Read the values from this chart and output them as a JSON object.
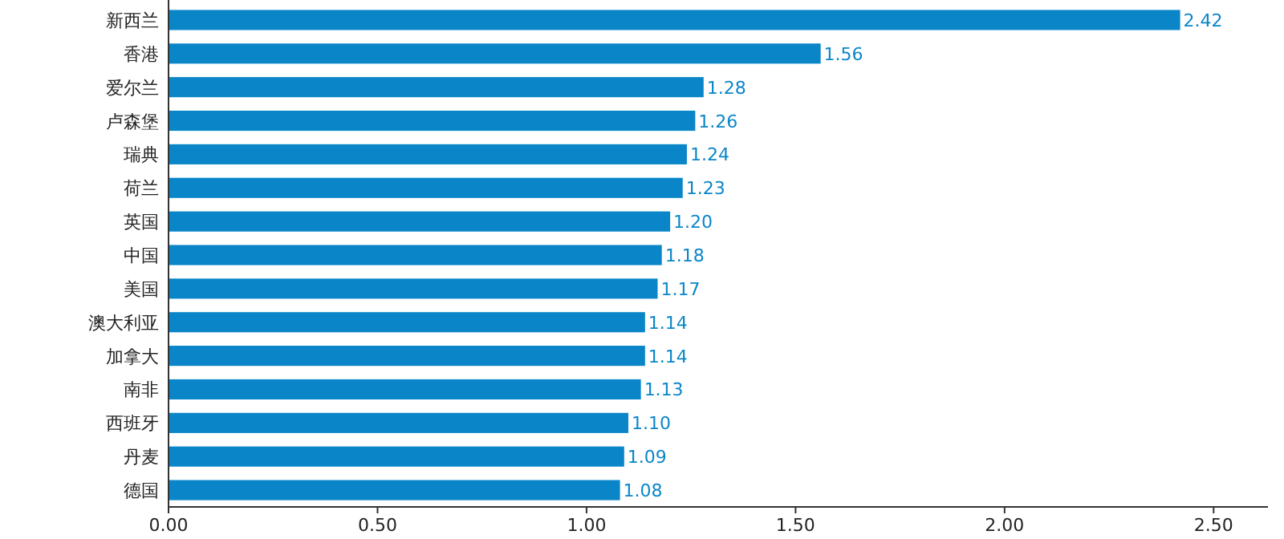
{
  "chart_data": {
    "type": "bar",
    "orientation": "horizontal",
    "categories": [
      "新西兰",
      "香港",
      "爱尔兰",
      "卢森堡",
      "瑞典",
      "荷兰",
      "英国",
      "中国",
      "美国",
      "澳大利亚",
      "加拿大",
      "南非",
      "西班牙",
      "丹麦",
      "德国"
    ],
    "values": [
      2.42,
      1.56,
      1.28,
      1.26,
      1.24,
      1.23,
      1.2,
      1.18,
      1.17,
      1.14,
      1.14,
      1.13,
      1.1,
      1.09,
      1.08
    ],
    "value_labels": [
      "2.42",
      "1.56",
      "1.28",
      "1.26",
      "1.24",
      "1.23",
      "1.20",
      "1.18",
      "1.17",
      "1.14",
      "1.14",
      "1.13",
      "1.10",
      "1.09",
      "1.08"
    ],
    "color": "#0a86c8",
    "xlim": [
      0,
      2.63
    ],
    "xticks": [
      {
        "value": 0,
        "label": "0.00"
      },
      {
        "value": 0.5,
        "label": "0.50"
      },
      {
        "value": 1,
        "label": "1.00"
      },
      {
        "value": 1.5,
        "label": "1.50"
      },
      {
        "value": 2,
        "label": "2.00"
      },
      {
        "value": 2.5,
        "label": "2.50"
      }
    ],
    "grid": false
  }
}
